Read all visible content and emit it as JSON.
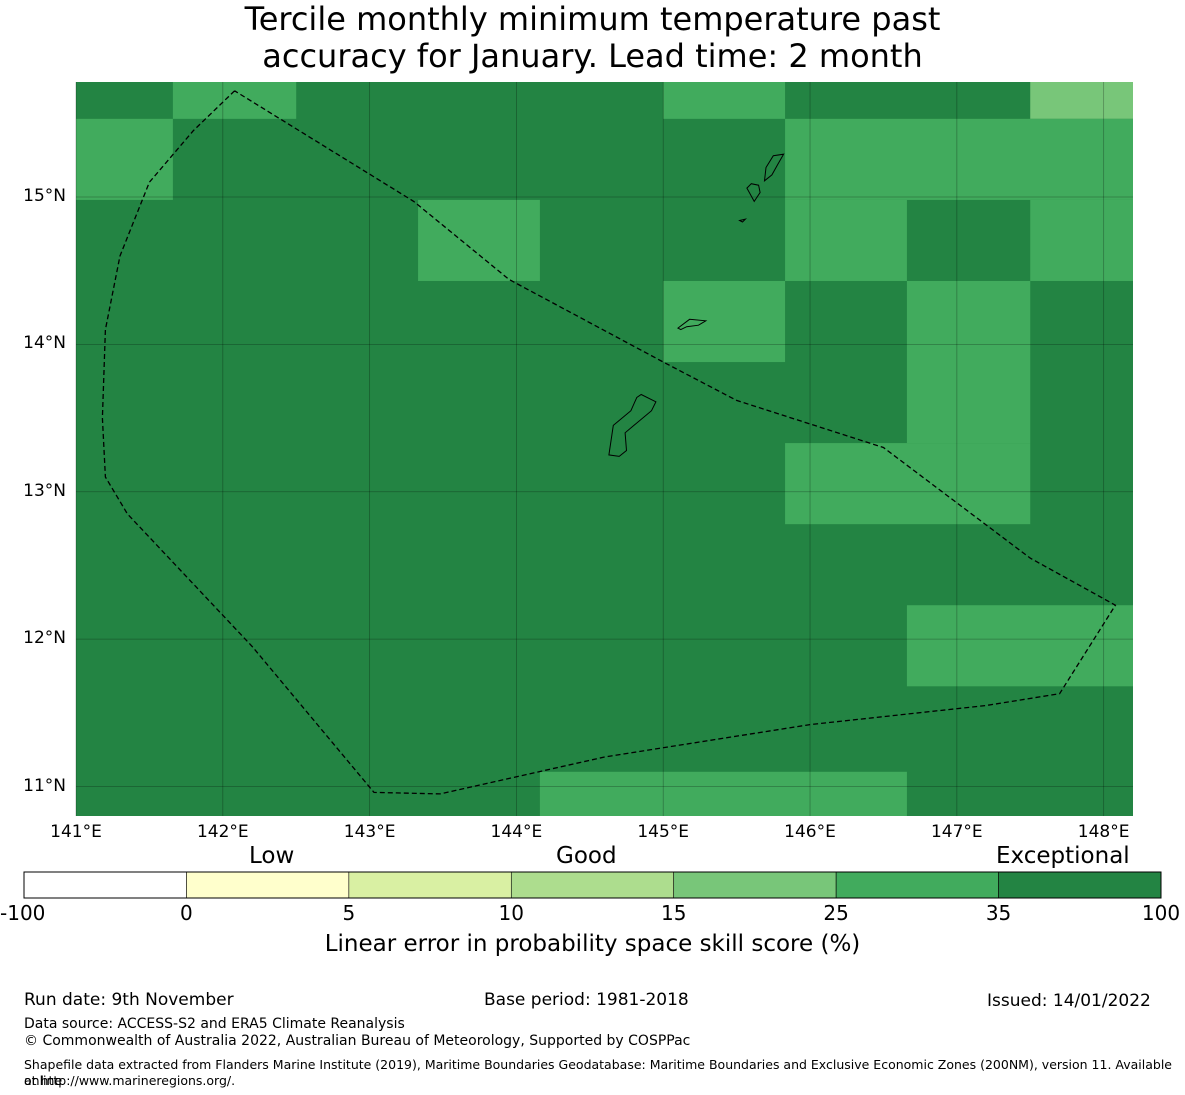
{
  "title_line1": "Tercile monthly minimum temperature past",
  "title_line2": "accuracy for January. Lead time: 2 month",
  "map": {
    "lon_range": [
      141.0,
      148.2
    ],
    "lat_range": [
      10.8,
      15.78
    ],
    "lat_ticks": [
      {
        "value": 15,
        "label": "15°N"
      },
      {
        "value": 14,
        "label": "14°N"
      },
      {
        "value": 13,
        "label": "13°N"
      },
      {
        "value": 12,
        "label": "12°N"
      },
      {
        "value": 11,
        "label": "11°N"
      }
    ],
    "lon_ticks": [
      {
        "value": 141,
        "label": "141°E"
      },
      {
        "value": 142,
        "label": "142°E"
      },
      {
        "value": 143,
        "label": "143°E"
      },
      {
        "value": 144,
        "label": "144°E"
      },
      {
        "value": 145,
        "label": "145°E"
      },
      {
        "value": 146,
        "label": "146°E"
      },
      {
        "value": 147,
        "label": "147°E"
      },
      {
        "value": 148,
        "label": "148°E"
      }
    ],
    "base_color": "#238443",
    "cells": [
      {
        "lon": [
          141.66,
          142.5
        ],
        "lat": [
          15.53,
          15.78
        ],
        "color": "#41ab5d"
      },
      {
        "lon": [
          145.0,
          145.83
        ],
        "lat": [
          15.53,
          15.78
        ],
        "color": "#41ab5d"
      },
      {
        "lon": [
          147.5,
          148.2
        ],
        "lat": [
          15.53,
          15.78
        ],
        "color": "#78c679"
      },
      {
        "lon": [
          141.0,
          141.66
        ],
        "lat": [
          14.98,
          15.53
        ],
        "color": "#41ab5d"
      },
      {
        "lon": [
          145.83,
          148.2
        ],
        "lat": [
          14.98,
          15.53
        ],
        "color": "#41ab5d"
      },
      {
        "lon": [
          143.33,
          144.16
        ],
        "lat": [
          14.43,
          14.98
        ],
        "color": "#41ab5d"
      },
      {
        "lon": [
          145.83,
          146.66
        ],
        "lat": [
          14.43,
          14.98
        ],
        "color": "#41ab5d"
      },
      {
        "lon": [
          147.5,
          148.2
        ],
        "lat": [
          14.43,
          14.98
        ],
        "color": "#41ab5d"
      },
      {
        "lon": [
          145.0,
          145.83
        ],
        "lat": [
          13.88,
          14.43
        ],
        "color": "#41ab5d"
      },
      {
        "lon": [
          146.66,
          147.5
        ],
        "lat": [
          13.33,
          14.43
        ],
        "color": "#41ab5d"
      },
      {
        "lon": [
          145.83,
          147.5
        ],
        "lat": [
          12.78,
          13.33
        ],
        "color": "#41ab5d"
      },
      {
        "lon": [
          146.66,
          148.2
        ],
        "lat": [
          11.68,
          12.23
        ],
        "color": "#41ab5d"
      },
      {
        "lon": [
          144.16,
          146.66
        ],
        "lat": [
          10.8,
          11.1
        ],
        "color": "#41ab5d"
      }
    ],
    "eez_boundary": [
      [
        142.08,
        15.72
      ],
      [
        141.8,
        15.45
      ],
      [
        141.5,
        15.1
      ],
      [
        141.3,
        14.6
      ],
      [
        141.2,
        14.1
      ],
      [
        141.18,
        13.5
      ],
      [
        141.2,
        13.1
      ],
      [
        141.35,
        12.85
      ],
      [
        142.2,
        11.95
      ],
      [
        143.03,
        10.96
      ],
      [
        143.48,
        10.95
      ],
      [
        144.6,
        11.2
      ],
      [
        146.0,
        11.42
      ],
      [
        147.2,
        11.55
      ],
      [
        147.7,
        11.63
      ],
      [
        148.08,
        12.23
      ],
      [
        147.5,
        12.55
      ],
      [
        146.5,
        13.3
      ],
      [
        145.5,
        13.62
      ],
      [
        145.0,
        13.88
      ],
      [
        143.95,
        14.44
      ],
      [
        143.3,
        14.97
      ],
      [
        142.08,
        15.72
      ]
    ],
    "islands": [
      [
        [
          144.63,
          13.25
        ],
        [
          144.66,
          13.45
        ],
        [
          144.78,
          13.55
        ],
        [
          144.82,
          13.64
        ],
        [
          144.85,
          13.66
        ],
        [
          144.95,
          13.61
        ],
        [
          144.92,
          13.55
        ],
        [
          144.8,
          13.45
        ],
        [
          144.74,
          13.4
        ],
        [
          144.75,
          13.28
        ],
        [
          144.7,
          13.24
        ],
        [
          144.63,
          13.25
        ]
      ],
      [
        [
          145.1,
          14.11
        ],
        [
          145.18,
          14.17
        ],
        [
          145.29,
          14.16
        ],
        [
          145.24,
          14.13
        ],
        [
          145.16,
          14.12
        ],
        [
          145.12,
          14.1
        ],
        [
          145.1,
          14.11
        ]
      ],
      [
        [
          145.62,
          14.97
        ],
        [
          145.57,
          15.06
        ],
        [
          145.6,
          15.09
        ],
        [
          145.65,
          15.08
        ],
        [
          145.66,
          15.03
        ],
        [
          145.62,
          14.97
        ]
      ],
      [
        [
          145.69,
          15.11
        ],
        [
          145.7,
          15.2
        ],
        [
          145.75,
          15.28
        ],
        [
          145.82,
          15.29
        ],
        [
          145.78,
          15.22
        ],
        [
          145.74,
          15.15
        ],
        [
          145.69,
          15.11
        ]
      ],
      [
        [
          145.52,
          14.84
        ],
        [
          145.56,
          14.85
        ],
        [
          145.54,
          14.83
        ],
        [
          145.52,
          14.84
        ]
      ]
    ]
  },
  "colorbar": {
    "categories": [
      {
        "label": "Low",
        "color": "#ffffff"
      },
      {
        "label": "Good",
        "color": "#ffffcc"
      },
      {
        "label": "Exceptional",
        "color": "#d9f0a3"
      }
    ],
    "words": {
      "low": "Low",
      "good": "Good",
      "exceptional": "Exceptional"
    },
    "colors": [
      "#ffffff",
      "#ffffcc",
      "#d9f0a3",
      "#addd8e",
      "#78c679",
      "#41ab5d",
      "#238443"
    ],
    "ticks": [
      "-100",
      "0",
      "5",
      "10",
      "15",
      "25",
      "35",
      "100"
    ],
    "label": "Linear error in probability space skill score (%)"
  },
  "footer": {
    "run_date": "Run date: 9th November",
    "base_period": "Base period: 1981-2018",
    "issued": "Issued: 14/01/2022",
    "data_source": "Data source: ACCESS-S2 and ERA5 Climate Reanalysis",
    "copyright": "© Commonwealth of Australia 2022, Australian Bureau of Meteorology, Supported by COSPPac",
    "shapefile_line1": "Shapefile data extracted from Flanders Marine Institute (2019), Maritime Boundaries Geodatabase: Maritime Boundaries and Exclusive Economic Zones (200NM), version 11. Available online",
    "shapefile_line2": "at http://www.marineregions.org/."
  }
}
